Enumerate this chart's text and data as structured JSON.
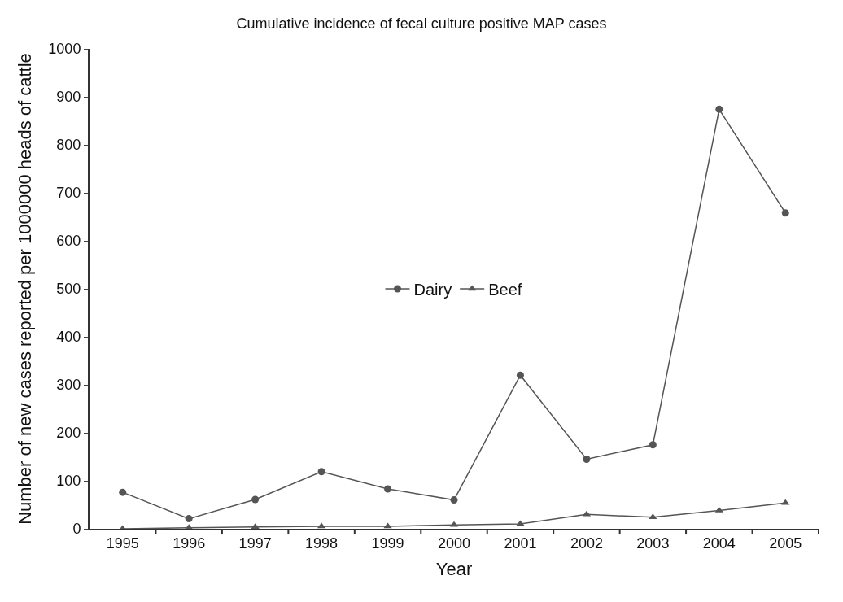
{
  "chart_data": {
    "type": "line",
    "title": "Cumulative incidence of fecal culture positive MAP cases",
    "xlabel": "Year",
    "ylabel": "Number of new cases reported per 1000000 heads of cattle",
    "categories": [
      "1995",
      "1996",
      "1997",
      "1998",
      "1999",
      "2000",
      "2001",
      "2002",
      "2003",
      "2004",
      "2005"
    ],
    "series": [
      {
        "name": "Dairy",
        "color": "#555555",
        "marker": "circle",
        "values": [
          76,
          21,
          61,
          119,
          83,
          60,
          320,
          145,
          175,
          874,
          658
        ]
      },
      {
        "name": "Beef",
        "color": "#555555",
        "marker": "triangle",
        "values": [
          0,
          2,
          4,
          5,
          5,
          8,
          10,
          30,
          24,
          38,
          54
        ]
      }
    ],
    "ylim": [
      0,
      1000
    ],
    "yticks": [
      0,
      100,
      200,
      300,
      400,
      500,
      600,
      700,
      800,
      900,
      1000
    ],
    "legend": "center"
  }
}
